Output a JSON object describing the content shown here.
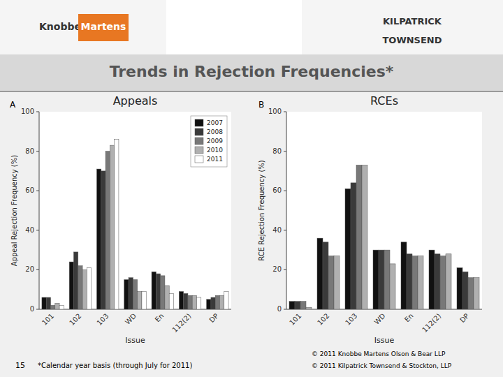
{
  "title": "Trends in Rejection Frequencies*",
  "annotations": [
    "Knobbe",
    "Martens",
    "KILPATRICK",
    "TOWNSEND",
    "15",
    "*Calendar year basis (through July for 2011)",
    "© 2011 Knobbe Martens Olson & Bear LLP",
    "© 2011 Kilpatrick Townsend & Stockton, LLP"
  ],
  "chart_data": [
    {
      "type": "bar",
      "title": "Appeals",
      "annotations": [
        "A"
      ],
      "x_label": "Issue",
      "y_label": "Appeal Rejection Frequency (%)",
      "categories": [
        "101",
        "102",
        "103",
        "WD",
        "En",
        "112(2)",
        "DP"
      ],
      "series": [
        {
          "name": "2007",
          "color": "#111111",
          "values": [
            6,
            24,
            71,
            15,
            19,
            9,
            5
          ]
        },
        {
          "name": "2008",
          "color": "#3a3a3a",
          "values": [
            6,
            29,
            70,
            16,
            18,
            8,
            6
          ]
        },
        {
          "name": "2009",
          "color": "#787878",
          "values": [
            2,
            22,
            80,
            15,
            17,
            7,
            7
          ]
        },
        {
          "name": "2010",
          "color": "#b0b0b0",
          "values": [
            3,
            20,
            83,
            9,
            12,
            7,
            7
          ]
        },
        {
          "name": "2011",
          "color": "#ffffff",
          "values": [
            2,
            21,
            86,
            9,
            8,
            6,
            9
          ]
        }
      ],
      "ylim": [
        0,
        100
      ],
      "yticks": [
        0,
        20,
        40,
        60,
        80,
        100
      ],
      "grid": false,
      "legend": "upper right"
    },
    {
      "type": "bar",
      "title": "RCEs",
      "annotations": [
        "B"
      ],
      "x_label": "Issue",
      "y_label": "RCE Rejection Frequency (%)",
      "categories": [
        "101",
        "102",
        "103",
        "WD",
        "En",
        "112(2)",
        "DP"
      ],
      "series": [
        {
          "color": "#111111",
          "values": [
            4,
            36,
            61,
            30,
            34,
            30,
            21
          ]
        },
        {
          "color": "#3a3a3a",
          "values": [
            4,
            34,
            64,
            30,
            28,
            28,
            19
          ]
        },
        {
          "color": "#787878",
          "values": [
            4,
            27,
            73,
            30,
            27,
            27,
            16
          ]
        },
        {
          "color": "#b0b0b0",
          "values": [
            1,
            27,
            73,
            23,
            27,
            28,
            16
          ]
        }
      ],
      "ylim": [
        0,
        100
      ],
      "yticks": [
        0,
        20,
        40,
        60,
        80,
        100
      ],
      "grid": false
    }
  ]
}
